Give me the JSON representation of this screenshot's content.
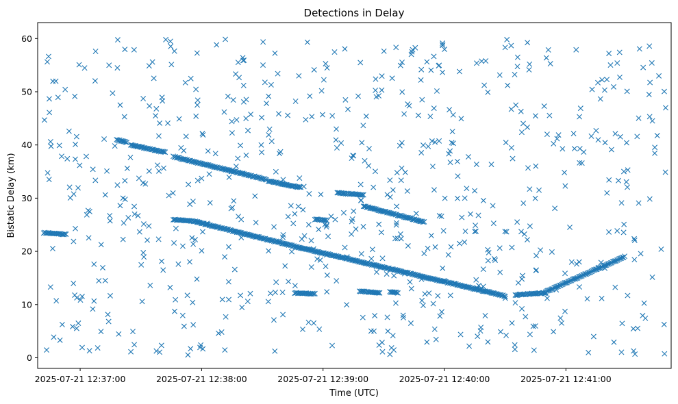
{
  "chart_data": {
    "type": "scatter",
    "title": "Detections in Delay",
    "xlabel": "Time (UTC)",
    "ylabel": "Bistatic Delay (km)",
    "x_ticks": [
      "2025-07-21 12:37:00",
      "2025-07-21 12:38:00",
      "2025-07-21 12:39:00",
      "2025-07-21 12:40:00",
      "2025-07-21 12:41:00"
    ],
    "y_ticks": [
      0,
      10,
      20,
      30,
      40,
      50,
      60
    ],
    "xlim": [
      "2025-07-21 12:36:39",
      "2025-07-21 12:41:52"
    ],
    "ylim": [
      -2,
      63
    ],
    "marker": "x",
    "color": "#1f77b4",
    "grid": false,
    "tracks": [
      {
        "x": [
          "2025-07-21 12:36:42",
          "2025-07-21 12:36:53"
        ],
        "y": [
          23.5,
          23.2
        ]
      },
      {
        "x": [
          "2025-07-21 12:37:18",
          "2025-07-21 12:37:23"
        ],
        "y": [
          41,
          40.5
        ]
      },
      {
        "x": [
          "2025-07-21 12:37:25",
          "2025-07-21 12:37:42"
        ],
        "y": [
          40,
          38.6
        ]
      },
      {
        "x": [
          "2025-07-21 12:37:46",
          "2025-07-21 12:38:32"
        ],
        "y": [
          37.8,
          33.5
        ]
      },
      {
        "x": [
          "2025-07-21 12:38:33",
          "2025-07-21 12:38:49"
        ],
        "y": [
          33.2,
          32
        ]
      },
      {
        "x": [
          "2025-07-21 12:37:46",
          "2025-07-21 12:37:58"
        ],
        "y": [
          26,
          25.6
        ]
      },
      {
        "x": [
          "2025-07-21 12:37:58",
          "2025-07-21 12:38:53"
        ],
        "y": [
          25.5,
          20.3
        ]
      },
      {
        "x": [
          "2025-07-21 12:38:53",
          "2025-07-21 12:40:30"
        ],
        "y": [
          20.3,
          11.6
        ]
      },
      {
        "x": [
          "2025-07-21 12:38:46",
          "2025-07-21 12:38:56"
        ],
        "y": [
          12.2,
          12
        ]
      },
      {
        "x": [
          "2025-07-21 12:38:56",
          "2025-07-21 12:39:02"
        ],
        "y": [
          26,
          25.8
        ]
      },
      {
        "x": [
          "2025-07-21 12:39:18",
          "2025-07-21 12:39:28"
        ],
        "y": [
          12.5,
          12.2
        ]
      },
      {
        "x": [
          "2025-07-21 12:39:33",
          "2025-07-21 12:39:37"
        ],
        "y": [
          12.4,
          12.2
        ]
      },
      {
        "x": [
          "2025-07-21 12:39:07",
          "2025-07-21 12:39:20"
        ],
        "y": [
          31,
          30.6
        ]
      },
      {
        "x": [
          "2025-07-21 12:39:20",
          "2025-07-21 12:39:50"
        ],
        "y": [
          28.5,
          25.5
        ]
      },
      {
        "x": [
          "2025-07-21 12:40:35",
          "2025-07-21 12:40:50"
        ],
        "y": [
          11.8,
          12.2
        ]
      },
      {
        "x": [
          "2025-07-21 12:40:50",
          "2025-07-21 12:41:29"
        ],
        "y": [
          12.4,
          19
        ]
      }
    ],
    "random_points": {
      "count": 700,
      "y_range": [
        0.5,
        60
      ],
      "x_range": [
        "2025-07-21 12:36:42",
        "2025-07-21 12:41:50"
      ]
    }
  }
}
